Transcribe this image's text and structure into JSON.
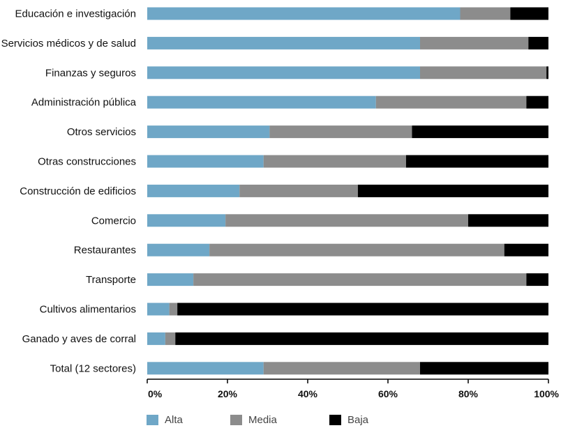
{
  "chart_data": {
    "type": "bar",
    "orientation": "horizontal",
    "stacked": true,
    "categories": [
      "Educación e investigación",
      "Servicios médicos y de salud",
      "Finanzas y seguros",
      "Administración pública",
      "Otros servicios",
      "Otras construcciones",
      "Construcción de edificios",
      "Comercio",
      "Restaurantes",
      "Transporte",
      "Cultivos alimentarios",
      "Ganado y aves de corral",
      "Total (12 sectores)"
    ],
    "series": [
      {
        "name": "Alta",
        "color": "#6fa7c7",
        "values": [
          78,
          68,
          68,
          57,
          30.5,
          29,
          23,
          19.5,
          15.5,
          11.5,
          5.5,
          4.5,
          29
        ]
      },
      {
        "name": "Media",
        "color": "#8c8c8c",
        "values": [
          12.5,
          27,
          31.5,
          37.5,
          35.5,
          35.5,
          29.5,
          60.5,
          73.5,
          83,
          2,
          2.5,
          39
        ]
      },
      {
        "name": "Baja",
        "color": "#000000",
        "values": [
          9.5,
          5,
          0.5,
          5.5,
          34,
          35.5,
          47.5,
          20,
          11,
          5.5,
          92.5,
          93,
          32
        ]
      }
    ],
    "x_ticks": [
      "0%",
      "20%",
      "40%",
      "60%",
      "80%",
      "100%"
    ],
    "xlim": [
      0,
      100
    ],
    "grid": false,
    "legend_position": "bottom-left"
  }
}
